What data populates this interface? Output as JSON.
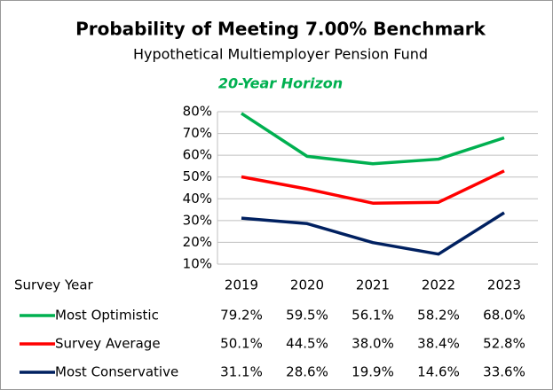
{
  "chart_data": {
    "type": "line",
    "title": "Probability of Meeting 7.00% Benchmark",
    "subtitle": "Hypothetical Multiemployer Pension Fund",
    "annotation": "20-Year Horizon",
    "table_header": "Survey Year",
    "categories": [
      "2019",
      "2020",
      "2021",
      "2022",
      "2023"
    ],
    "series": [
      {
        "name": "Most Optimistic",
        "color": "#00b050",
        "values": [
          79.2,
          59.5,
          56.1,
          58.2,
          68.0
        ],
        "value_labels": [
          "79.2%",
          "59.5%",
          "56.1%",
          "58.2%",
          "68.0%"
        ]
      },
      {
        "name": "Survey Average",
        "color": "#ff0000",
        "values": [
          50.1,
          44.5,
          38.0,
          38.4,
          52.8
        ],
        "value_labels": [
          "50.1%",
          "44.5%",
          "38.0%",
          "38.4%",
          "52.8%"
        ]
      },
      {
        "name": "Most Conservative",
        "color": "#002060",
        "values": [
          31.1,
          28.6,
          19.9,
          14.6,
          33.6
        ],
        "value_labels": [
          "31.1%",
          "28.6%",
          "19.9%",
          "14.6%",
          "33.6%"
        ]
      }
    ],
    "ylim": [
      10,
      80
    ],
    "yticks": [
      {
        "value": 10,
        "label": "10%"
      },
      {
        "value": 20,
        "label": "20%"
      },
      {
        "value": 30,
        "label": "30%"
      },
      {
        "value": 40,
        "label": "40%"
      },
      {
        "value": 50,
        "label": "50%"
      },
      {
        "value": 60,
        "label": "60%"
      },
      {
        "value": 70,
        "label": "70%"
      },
      {
        "value": 80,
        "label": "80%"
      }
    ],
    "grid": true
  }
}
